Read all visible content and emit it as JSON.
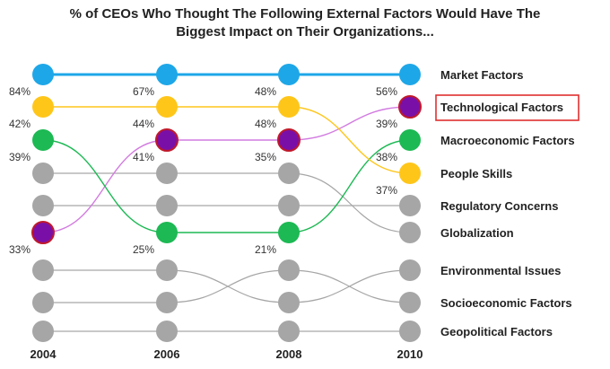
{
  "title": {
    "line1": "% of CEOs Who Thought The Following External Factors Would Have The",
    "line2": "Biggest Impact on Their Organizations..."
  },
  "chart_data": {
    "type": "bump",
    "title": "% of CEOs Who Thought The Following External Factors Would Have The Biggest Impact on Their Organizations...",
    "years": [
      "2004",
      "2006",
      "2008",
      "2010"
    ],
    "rank_labels": [
      "Market Factors",
      "Technological Factors",
      "Macroeconomic Factors",
      "People Skills",
      "Regulatory Concerns",
      "Globalization",
      "Environmental Issues",
      "Socioeconomic Factors",
      "Geopolitical Factors"
    ],
    "highlighted_label": "Technological Factors",
    "series": [
      {
        "name": "Market Factors",
        "color": "#1ea7e8",
        "ranks": [
          1,
          1,
          1,
          1
        ],
        "values": [
          "84%",
          "67%",
          "48%",
          "56%"
        ]
      },
      {
        "name": "Technological Factors",
        "color": "#7a0fa8",
        "line_color": "#d27be0",
        "ranks": [
          6,
          3,
          3,
          2
        ],
        "values": [
          "33%",
          "41%",
          "35%",
          "39%"
        ]
      },
      {
        "name": "Macroeconomic Factors",
        "color": "#1db954",
        "ranks": [
          3,
          6,
          6,
          3
        ],
        "values": [
          "39%",
          "25%",
          "21%",
          "38%"
        ]
      },
      {
        "name": "People Skills",
        "color": "#ffc61a",
        "ranks": [
          2,
          2,
          2,
          4
        ],
        "values": [
          "42%",
          "44%",
          "48%",
          "37%"
        ]
      },
      {
        "name": "Regulatory Concerns",
        "color": "#a6a6a6",
        "ranks": [
          5,
          5,
          5,
          5
        ],
        "values": []
      },
      {
        "name": "Globalization",
        "color": "#a6a6a6",
        "ranks": [
          4,
          4,
          4,
          6
        ],
        "values": []
      },
      {
        "name": "Environmental Issues",
        "color": "#a6a6a6",
        "ranks": [
          7,
          7,
          8,
          7
        ],
        "values": []
      },
      {
        "name": "Socioeconomic Factors",
        "color": "#a6a6a6",
        "ranks": [
          8,
          8,
          7,
          8
        ],
        "values": []
      },
      {
        "name": "Geopolitical Factors",
        "color": "#a6a6a6",
        "ranks": [
          9,
          9,
          9,
          9
        ],
        "values": []
      }
    ],
    "highlight_box_color": "#e03030",
    "dot_outline_color": "#c0192b"
  }
}
